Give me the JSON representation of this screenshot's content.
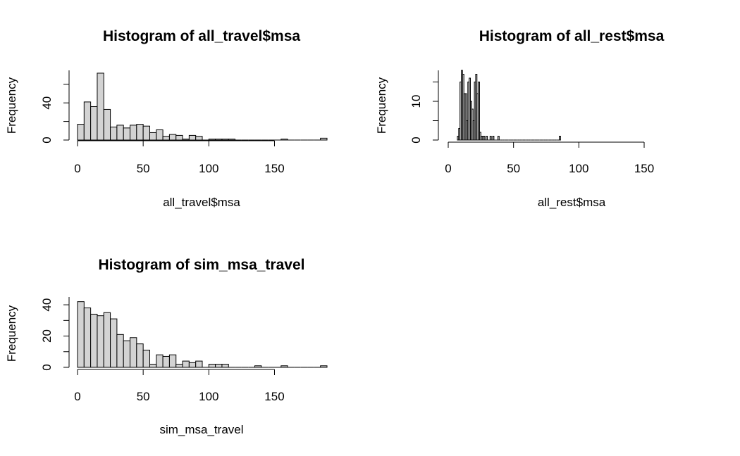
{
  "chart_data": [
    {
      "type": "bar",
      "title": "Histogram of all_travel$msa",
      "xlabel": "all_travel$msa",
      "ylabel": "Frequency",
      "xlim": [
        0,
        190
      ],
      "x_ticks": [
        0,
        50,
        100,
        150
      ],
      "y_ticks": [
        0,
        40
      ],
      "ylim": [
        0,
        75
      ],
      "bin_width": 5,
      "bins_start": [
        0,
        5,
        10,
        15,
        20,
        25,
        30,
        35,
        40,
        45,
        50,
        55,
        60,
        65,
        70,
        75,
        80,
        85,
        90,
        95,
        100,
        105,
        110,
        115,
        120,
        125,
        130,
        135,
        140,
        145,
        150,
        155,
        160,
        165,
        170,
        175,
        180,
        185
      ],
      "values": [
        17,
        41,
        36,
        72,
        33,
        14,
        16,
        13,
        16,
        17,
        15,
        8,
        11,
        4,
        6,
        5,
        1,
        5,
        4,
        0,
        1,
        1,
        1,
        1,
        0,
        0,
        0,
        0,
        0,
        0,
        0,
        1,
        0,
        0,
        0,
        0,
        0,
        2
      ]
    },
    {
      "type": "bar",
      "title": "Histogram of all_rest$msa",
      "xlabel": "all_rest$msa",
      "ylabel": "Frequency",
      "xlim": [
        0,
        150
      ],
      "x_ticks": [
        0,
        50,
        100,
        150
      ],
      "y_ticks": [
        0,
        10
      ],
      "ylim": [
        0,
        18
      ],
      "bin_width": 1,
      "bins_start": [
        7,
        8,
        9,
        10,
        11,
        12,
        13,
        14,
        15,
        16,
        17,
        18,
        19,
        20,
        21,
        22,
        23,
        24,
        25,
        26,
        27,
        28,
        29,
        30,
        31,
        32,
        33,
        34,
        35,
        36,
        37,
        38,
        39,
        40,
        41,
        42,
        43,
        44,
        45,
        46,
        47,
        48,
        49,
        50,
        51,
        52,
        53,
        54,
        55,
        56,
        57,
        58,
        59,
        60,
        61,
        62,
        63,
        64,
        65,
        66,
        67,
        68,
        69,
        70,
        71,
        72,
        73,
        74,
        75,
        76,
        77,
        78,
        79,
        80,
        81,
        82,
        83,
        84,
        85
      ],
      "values": [
        1,
        3,
        15,
        18,
        17,
        12,
        12,
        5,
        15,
        16,
        10,
        8,
        5,
        15,
        17,
        12,
        15,
        2,
        1,
        1,
        1,
        0,
        1,
        0,
        0,
        1,
        0,
        1,
        0,
        0,
        0,
        1,
        0,
        0,
        0,
        0,
        0,
        0,
        0,
        0,
        0,
        0,
        0,
        0,
        0,
        0,
        0,
        0,
        0,
        0,
        0,
        0,
        0,
        0,
        0,
        0,
        0,
        0,
        0,
        0,
        0,
        0,
        0,
        0,
        0,
        0,
        0,
        0,
        0,
        0,
        0,
        0,
        0,
        0,
        0,
        0,
        0,
        0,
        1
      ]
    },
    {
      "type": "bar",
      "title": "Histogram of sim_msa_travel",
      "xlabel": "sim_msa_travel",
      "ylabel": "Frequency",
      "xlim": [
        0,
        190
      ],
      "x_ticks": [
        0,
        50,
        100,
        150
      ],
      "y_ticks": [
        0,
        20,
        40
      ],
      "ylim": [
        0,
        45
      ],
      "bin_width": 5,
      "bins_start": [
        0,
        5,
        10,
        15,
        20,
        25,
        30,
        35,
        40,
        45,
        50,
        55,
        60,
        65,
        70,
        75,
        80,
        85,
        90,
        95,
        100,
        105,
        110,
        115,
        120,
        125,
        130,
        135,
        140,
        145,
        150,
        155,
        160,
        165,
        170,
        175,
        180,
        185
      ],
      "values": [
        42,
        38,
        34,
        33,
        35,
        31,
        21,
        17,
        19,
        15,
        11,
        2,
        8,
        7,
        8,
        2,
        4,
        3,
        4,
        0,
        2,
        2,
        2,
        0,
        0,
        0,
        0,
        1,
        0,
        0,
        0,
        1,
        0,
        0,
        0,
        0,
        0,
        1
      ]
    }
  ]
}
